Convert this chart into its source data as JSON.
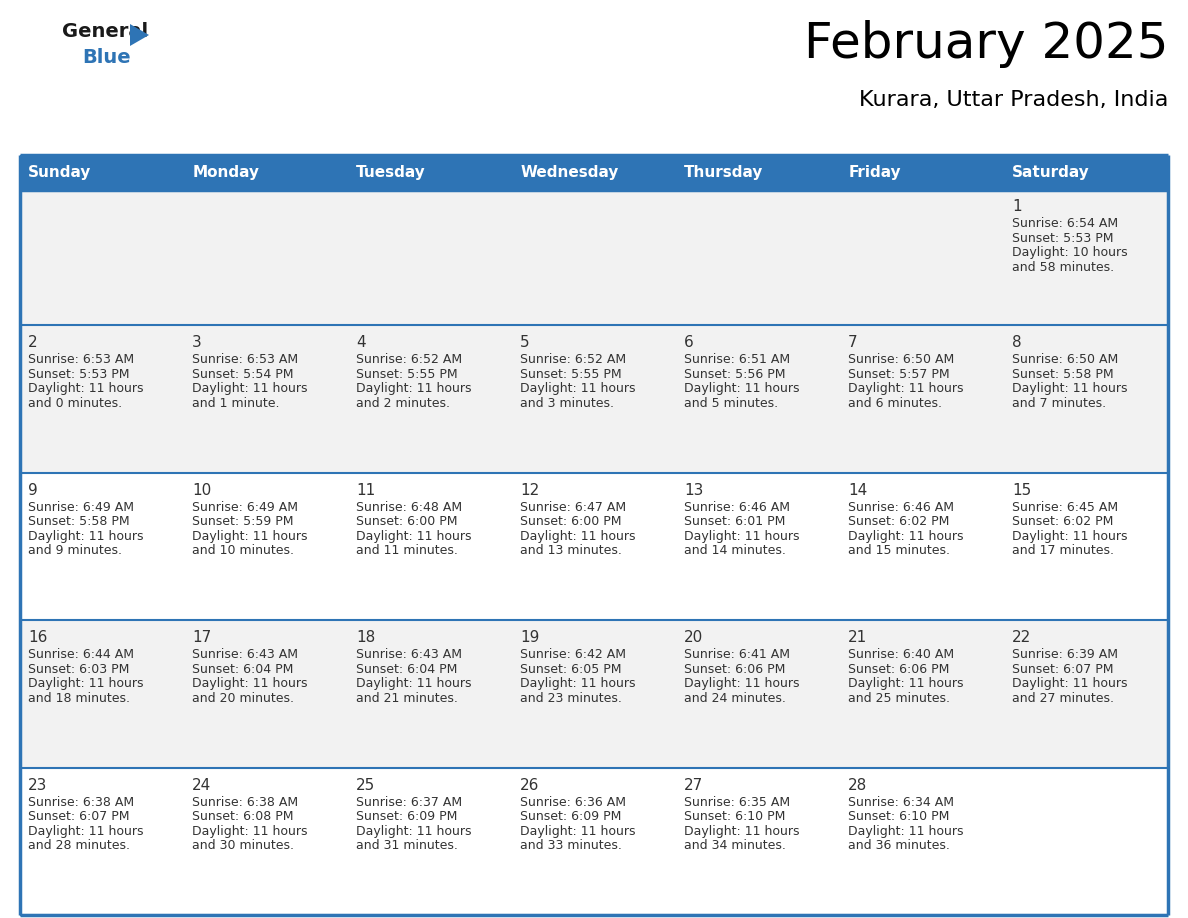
{
  "title": "February 2025",
  "subtitle": "Kurara, Uttar Pradesh, India",
  "header_bg": "#2E74B5",
  "header_text_color": "#FFFFFF",
  "cell_bg_row0": "#F2F2F2",
  "cell_bg_row1": "#F2F2F2",
  "cell_bg_row2": "#FFFFFF",
  "cell_bg_row3": "#F2F2F2",
  "cell_bg_row4": "#FFFFFF",
  "cell_bg_row5": "#F2F2F2",
  "day_headers": [
    "Sunday",
    "Monday",
    "Tuesday",
    "Wednesday",
    "Thursday",
    "Friday",
    "Saturday"
  ],
  "days": [
    {
      "day": 1,
      "col": 6,
      "row": 0,
      "sunrise": "6:54 AM",
      "sunset": "5:53 PM",
      "daylight_line1": "Daylight: 10 hours",
      "daylight_line2": "and 58 minutes."
    },
    {
      "day": 2,
      "col": 0,
      "row": 1,
      "sunrise": "6:53 AM",
      "sunset": "5:53 PM",
      "daylight_line1": "Daylight: 11 hours",
      "daylight_line2": "and 0 minutes."
    },
    {
      "day": 3,
      "col": 1,
      "row": 1,
      "sunrise": "6:53 AM",
      "sunset": "5:54 PM",
      "daylight_line1": "Daylight: 11 hours",
      "daylight_line2": "and 1 minute."
    },
    {
      "day": 4,
      "col": 2,
      "row": 1,
      "sunrise": "6:52 AM",
      "sunset": "5:55 PM",
      "daylight_line1": "Daylight: 11 hours",
      "daylight_line2": "and 2 minutes."
    },
    {
      "day": 5,
      "col": 3,
      "row": 1,
      "sunrise": "6:52 AM",
      "sunset": "5:55 PM",
      "daylight_line1": "Daylight: 11 hours",
      "daylight_line2": "and 3 minutes."
    },
    {
      "day": 6,
      "col": 4,
      "row": 1,
      "sunrise": "6:51 AM",
      "sunset": "5:56 PM",
      "daylight_line1": "Daylight: 11 hours",
      "daylight_line2": "and 5 minutes."
    },
    {
      "day": 7,
      "col": 5,
      "row": 1,
      "sunrise": "6:50 AM",
      "sunset": "5:57 PM",
      "daylight_line1": "Daylight: 11 hours",
      "daylight_line2": "and 6 minutes."
    },
    {
      "day": 8,
      "col": 6,
      "row": 1,
      "sunrise": "6:50 AM",
      "sunset": "5:58 PM",
      "daylight_line1": "Daylight: 11 hours",
      "daylight_line2": "and 7 minutes."
    },
    {
      "day": 9,
      "col": 0,
      "row": 2,
      "sunrise": "6:49 AM",
      "sunset": "5:58 PM",
      "daylight_line1": "Daylight: 11 hours",
      "daylight_line2": "and 9 minutes."
    },
    {
      "day": 10,
      "col": 1,
      "row": 2,
      "sunrise": "6:49 AM",
      "sunset": "5:59 PM",
      "daylight_line1": "Daylight: 11 hours",
      "daylight_line2": "and 10 minutes."
    },
    {
      "day": 11,
      "col": 2,
      "row": 2,
      "sunrise": "6:48 AM",
      "sunset": "6:00 PM",
      "daylight_line1": "Daylight: 11 hours",
      "daylight_line2": "and 11 minutes."
    },
    {
      "day": 12,
      "col": 3,
      "row": 2,
      "sunrise": "6:47 AM",
      "sunset": "6:00 PM",
      "daylight_line1": "Daylight: 11 hours",
      "daylight_line2": "and 13 minutes."
    },
    {
      "day": 13,
      "col": 4,
      "row": 2,
      "sunrise": "6:46 AM",
      "sunset": "6:01 PM",
      "daylight_line1": "Daylight: 11 hours",
      "daylight_line2": "and 14 minutes."
    },
    {
      "day": 14,
      "col": 5,
      "row": 2,
      "sunrise": "6:46 AM",
      "sunset": "6:02 PM",
      "daylight_line1": "Daylight: 11 hours",
      "daylight_line2": "and 15 minutes."
    },
    {
      "day": 15,
      "col": 6,
      "row": 2,
      "sunrise": "6:45 AM",
      "sunset": "6:02 PM",
      "daylight_line1": "Daylight: 11 hours",
      "daylight_line2": "and 17 minutes."
    },
    {
      "day": 16,
      "col": 0,
      "row": 3,
      "sunrise": "6:44 AM",
      "sunset": "6:03 PM",
      "daylight_line1": "Daylight: 11 hours",
      "daylight_line2": "and 18 minutes."
    },
    {
      "day": 17,
      "col": 1,
      "row": 3,
      "sunrise": "6:43 AM",
      "sunset": "6:04 PM",
      "daylight_line1": "Daylight: 11 hours",
      "daylight_line2": "and 20 minutes."
    },
    {
      "day": 18,
      "col": 2,
      "row": 3,
      "sunrise": "6:43 AM",
      "sunset": "6:04 PM",
      "daylight_line1": "Daylight: 11 hours",
      "daylight_line2": "and 21 minutes."
    },
    {
      "day": 19,
      "col": 3,
      "row": 3,
      "sunrise": "6:42 AM",
      "sunset": "6:05 PM",
      "daylight_line1": "Daylight: 11 hours",
      "daylight_line2": "and 23 minutes."
    },
    {
      "day": 20,
      "col": 4,
      "row": 3,
      "sunrise": "6:41 AM",
      "sunset": "6:06 PM",
      "daylight_line1": "Daylight: 11 hours",
      "daylight_line2": "and 24 minutes."
    },
    {
      "day": 21,
      "col": 5,
      "row": 3,
      "sunrise": "6:40 AM",
      "sunset": "6:06 PM",
      "daylight_line1": "Daylight: 11 hours",
      "daylight_line2": "and 25 minutes."
    },
    {
      "day": 22,
      "col": 6,
      "row": 3,
      "sunrise": "6:39 AM",
      "sunset": "6:07 PM",
      "daylight_line1": "Daylight: 11 hours",
      "daylight_line2": "and 27 minutes."
    },
    {
      "day": 23,
      "col": 0,
      "row": 4,
      "sunrise": "6:38 AM",
      "sunset": "6:07 PM",
      "daylight_line1": "Daylight: 11 hours",
      "daylight_line2": "and 28 minutes."
    },
    {
      "day": 24,
      "col": 1,
      "row": 4,
      "sunrise": "6:38 AM",
      "sunset": "6:08 PM",
      "daylight_line1": "Daylight: 11 hours",
      "daylight_line2": "and 30 minutes."
    },
    {
      "day": 25,
      "col": 2,
      "row": 4,
      "sunrise": "6:37 AM",
      "sunset": "6:09 PM",
      "daylight_line1": "Daylight: 11 hours",
      "daylight_line2": "and 31 minutes."
    },
    {
      "day": 26,
      "col": 3,
      "row": 4,
      "sunrise": "6:36 AM",
      "sunset": "6:09 PM",
      "daylight_line1": "Daylight: 11 hours",
      "daylight_line2": "and 33 minutes."
    },
    {
      "day": 27,
      "col": 4,
      "row": 4,
      "sunrise": "6:35 AM",
      "sunset": "6:10 PM",
      "daylight_line1": "Daylight: 11 hours",
      "daylight_line2": "and 34 minutes."
    },
    {
      "day": 28,
      "col": 5,
      "row": 4,
      "sunrise": "6:34 AM",
      "sunset": "6:10 PM",
      "daylight_line1": "Daylight: 11 hours",
      "daylight_line2": "and 36 minutes."
    }
  ],
  "num_rows": 5,
  "num_cols": 7,
  "border_color": "#2E74B5",
  "divider_color": "#2E74B5",
  "text_color": "#333333",
  "day_num_color": "#333333",
  "logo_triangle_color": "#2E74B5",
  "title_fontsize": 36,
  "subtitle_fontsize": 16,
  "header_fontsize": 11,
  "daynum_fontsize": 11,
  "cell_text_fontsize": 9
}
